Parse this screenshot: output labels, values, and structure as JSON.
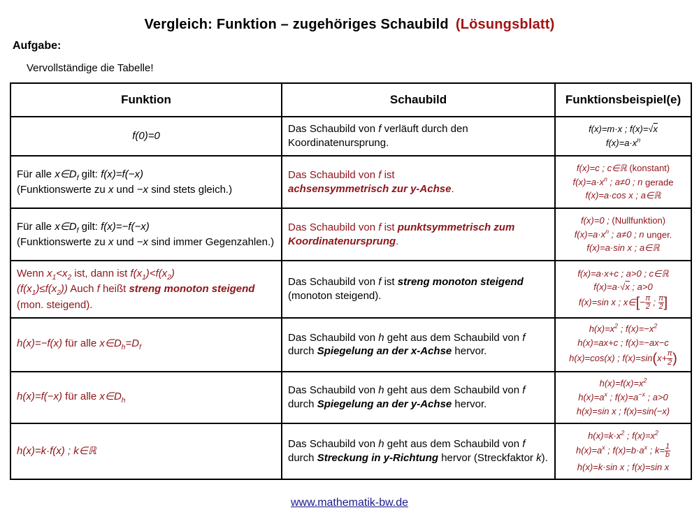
{
  "title": {
    "main": "Vergleich: Funktion – zugehöriges Schaubild",
    "suffix": "(Lösungsblatt)"
  },
  "labels": {
    "aufgabe": "Aufgabe:",
    "instruction": "Vervollständige die Tabelle!"
  },
  "colors": {
    "title_accent_red": "#a31212",
    "body_accent_red": "#8e1419",
    "footer_link_blue": "#1a1a8a",
    "border_black": "#000000"
  },
  "table": {
    "headers": [
      "Funktion",
      "Schaubild",
      "Funktionsbeispiel(e)"
    ],
    "rows": [
      {
        "funktion_html": "<span class='m'>f(0)=0</span>",
        "schaubild_html": "Das Schaubild von <span class='m'>f</span> verläuft durch den Koordinatenursprung.",
        "beispiele_html": "<div class='bl'><span class='m'>f(x)=m·x ; f(x)=√<span class='ol'>x</span></span></div><div class='bl'><span class='m'>f(x)=a·x<sup>n</sup></span></div>"
      },
      {
        "funktion_html": "Für alle <span class='m'>x∈D<sub>f</sub></span> gilt: <span class='m'>f(x)=f(−x)</span><br>(Funktionswerte zu <span class='m'>x</span> und <span class='m'>−x</span> sind stets gleich.)",
        "schaubild_html": "Das Schaubild von <span class='m'>f</span> ist<br><b class='m'>achsensymmetrisch zur y-Achse</b>.",
        "beispiele_html": "<div class='bl'><span class='m'>f(x)=c ; c∈ℝ</span> (konstant)</div><div class='bl'><span class='m'>f(x)=a·x<sup>n</sup> ; a≠0 ; n</span> gerade</div><div class='bl'><span class='m'>f(x)=a·cos x ; a∈ℝ</span></div>"
      },
      {
        "funktion_html": "Für alle <span class='m'>x∈D<sub>f</sub></span> gilt: <span class='m'>f(x)=−f(−x)</span><br>(Funktionswerte zu <span class='m'>x</span> und <span class='m'>−x</span> sind immer Gegenzahlen.)",
        "schaubild_html": "Das Schaubild von <span class='m'>f</span> ist <b class='m'>punktsymmetrisch zum Koordinatenursprung</b>.",
        "beispiele_html": "<div class='bl'><span class='m'>f(x)=0 ;</span> (Nullfunktion)</div><div class='bl'><span class='m'>f(x)=a·x<sup>n</sup> ; a≠0 ; n</span> unger.</div><div class='bl'><span class='m'>f(x)=a·sin x ; a∈ℝ</span></div>"
      },
      {
        "funktion_html": "Wenn <span class='m'>x<sub>1</sub>&lt;x<sub>2</sub></span> ist, dann ist <span class='m'>f(x<sub>1</sub>)&lt;f(x<sub>2</sub>)</span><br><span class='m'>(f(x<sub>1</sub>)≤f(x<sub>2</sub>))</span> Auch <span class='m'>f</span> heißt <b class='m'>streng monoton steigend</b> (mon. steigend).",
        "schaubild_html": "Das Schaubild von <span class='m'>f</span> ist <b class='m'>streng monoton steigend</b> (monoton steigend).",
        "beispiele_html": "<div class='bl'><span class='m'>f(x)=a·x+c ; a&gt;0 ; c∈ℝ</span></div><div class='bl'><span class='m'>f(x)=a·√<span class='ol'>x</span> ; a&gt;0</span></div><div class='bl'><span class='m'>f(x)=sin x ; x∈<span class='big'>[</span>−<span class='frac'><span class='num'>π</span><span class='den'>2</span></span> ; <span class='frac'><span class='num'>π</span><span class='den'>2</span></span><span class='big'>]</span></span></div>"
      },
      {
        "funktion_html": "<span class='m'>h(x)=−f(x)</span> für alle <span class='m'>x∈D<sub>h</sub>=D<sub>f</sub></span>",
        "schaubild_html": "Das Schaubild von <span class='m'>h</span> geht aus dem Schaubild von <span class='m'>f</span> durch <b class='m'>Spiegelung an der x-Achse</b> hervor.",
        "beispiele_html": "<div class='bl'><span class='m'>h(x)=x<sup>2</sup> ; f(x)=−x<sup>2</sup></span></div><div class='bl'><span class='m'>h(x)=ax+c ; f(x)=−ax−c</span></div><div class='bl'><span class='m'>h(x)=cos(x) ; f(x)=sin<span class='big'>(</span>x+<span class='frac'><span class='num'>π</span><span class='den'>2</span></span><span class='big'>)</span></span></div>"
      },
      {
        "funktion_html": "<span class='m'>h(x)=f(−x)</span> für alle <span class='m'>x∈D<sub>h</sub></span>",
        "schaubild_html": "Das Schaubild von <span class='m'>h</span> geht aus dem Schaubild von <span class='m'>f</span> durch <b class='m'>Spiegelung an der y-Achse</b> hervor.",
        "beispiele_html": "<div class='bl'><span class='m'>h(x)=f(x)=x<sup>2</sup></span></div><div class='bl'><span class='m'>h(x)=a<sup>x</sup> ; f(x)=a<sup>−x</sup> ; a&gt;0</span></div><div class='bl'><span class='m'>h(x)=sin x ; f(x)=sin(−x)</span></div>"
      },
      {
        "funktion_html": "<span class='m'>h(x)=k·f(x) ; k∈ℝ</span>",
        "schaubild_html": "Das Schaubild von <span class='m'>h</span> geht aus dem Schaubild von <span class='m'>f</span> durch <b class='m'>Streckung in y-Richtung</b> hervor (Streckfaktor <span class='m'>k</span>).",
        "beispiele_html": "<div class='bl'><span class='m'>h(x)=k·x<sup>2</sup> ; f(x)=x<sup>2</sup></span></div><div class='bl'><span class='m'>h(x)=a<sup>x</sup> ; f(x)=b·a<sup>x</sup> ; k=<span class='frac'><span class='num'>1</span><span class='den'>b</span></span></span></div><div class='bl'><span class='m'>h(x)=k·sin x ; f(x)=sin x</span></div>"
      }
    ]
  },
  "footer": {
    "link": "www.mathematik-bw.de"
  }
}
